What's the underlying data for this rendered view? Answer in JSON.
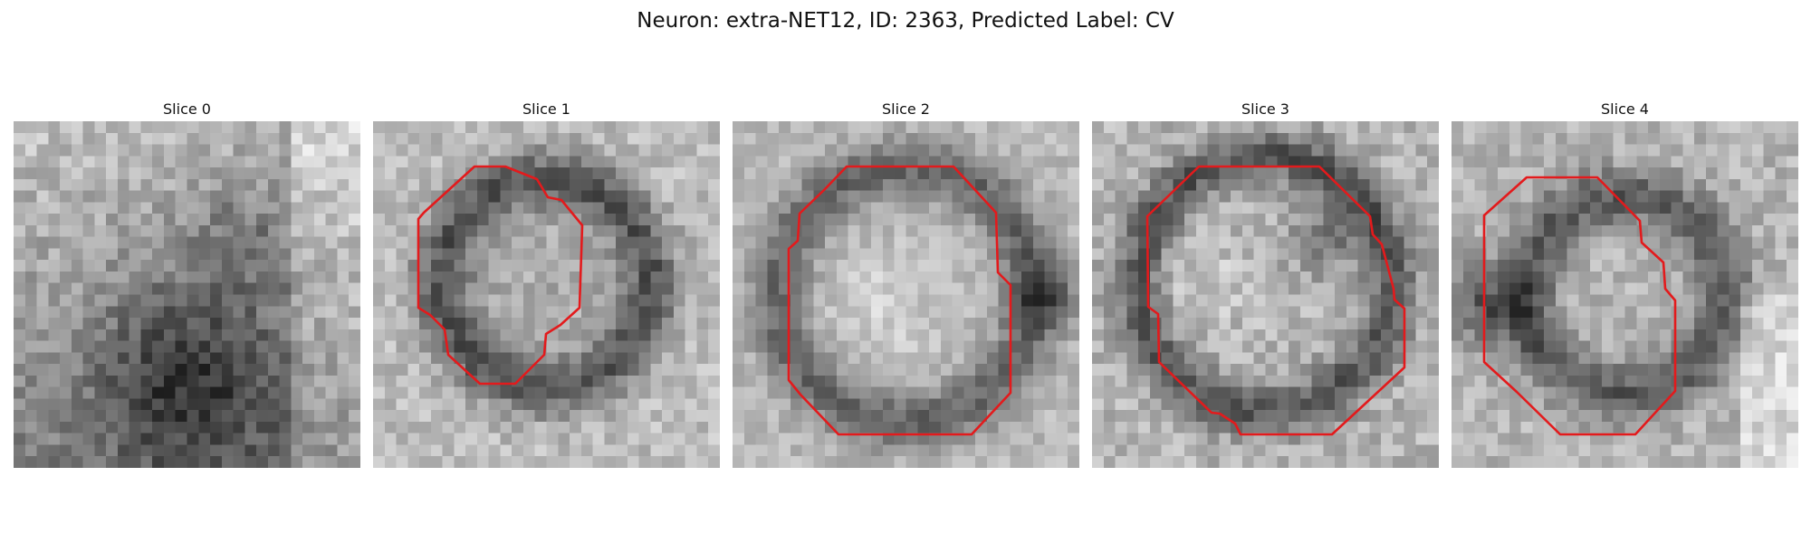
{
  "title": "Neuron: extra-NET12, ID: 2363, Predicted Label: CV",
  "contour_color": "#e31a1c",
  "slices": [
    {
      "label": "Slice 0"
    },
    {
      "label": "Slice 1"
    },
    {
      "label": "Slice 2"
    },
    {
      "label": "Slice 3"
    },
    {
      "label": "Slice 4"
    }
  ]
}
